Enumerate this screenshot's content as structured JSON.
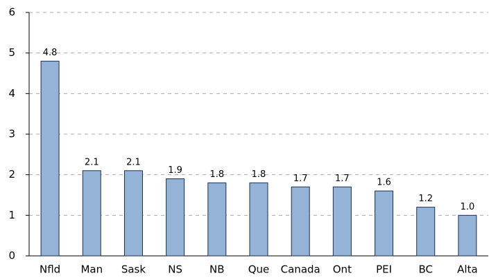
{
  "chart_data": {
    "type": "bar",
    "categories": [
      "Nfld",
      "Man",
      "Sask",
      "NS",
      "NB",
      "Que",
      "Canada",
      "Ont",
      "PEI",
      "BC",
      "Alta"
    ],
    "values": [
      4.8,
      2.1,
      2.1,
      1.9,
      1.8,
      1.8,
      1.7,
      1.7,
      1.6,
      1.2,
      1.0
    ],
    "value_labels": [
      "4.8",
      "2.1",
      "2.1",
      "1.9",
      "1.8",
      "1.8",
      "1.7",
      "1.7",
      "1.6",
      "1.2",
      "1.0"
    ],
    "color": "#95b3d7",
    "ylim": [
      0,
      6
    ],
    "yticks": [
      0,
      1,
      2,
      3,
      4,
      5,
      6
    ],
    "grid": true
  }
}
